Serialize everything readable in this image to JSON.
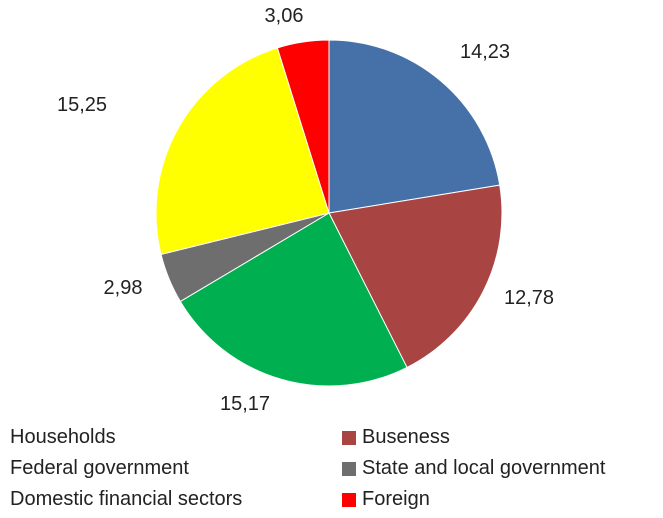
{
  "chart_data": {
    "type": "pie",
    "title": "",
    "values": [
      14.23,
      12.78,
      15.17,
      2.98,
      15.25,
      3.06
    ],
    "labels": [
      "14,23",
      "12,78",
      "15,17",
      "2,98",
      "15,25",
      "3,06"
    ],
    "colors": [
      "#4570A8",
      "#A84543",
      "#00B050",
      "#6E6E6E",
      "#FFFF00",
      "#FF0000"
    ],
    "start_angle_deg": 0,
    "direction": "clockwise",
    "legend": {
      "position": "bottom",
      "entries": [
        {
          "name": "Households",
          "color": "#4570A8",
          "swatch": false
        },
        {
          "name": "Buseness",
          "color": "#A84543",
          "swatch": true
        },
        {
          "name": "Federal government",
          "color": "#00B050",
          "swatch": false
        },
        {
          "name": "State and local government",
          "color": "#6E6E6E",
          "swatch": true
        },
        {
          "name": "Domestic financial sectors",
          "color": "#FFFF00",
          "swatch": false
        },
        {
          "name": "Foreign",
          "color": "#FF0000",
          "swatch": true
        }
      ]
    }
  }
}
